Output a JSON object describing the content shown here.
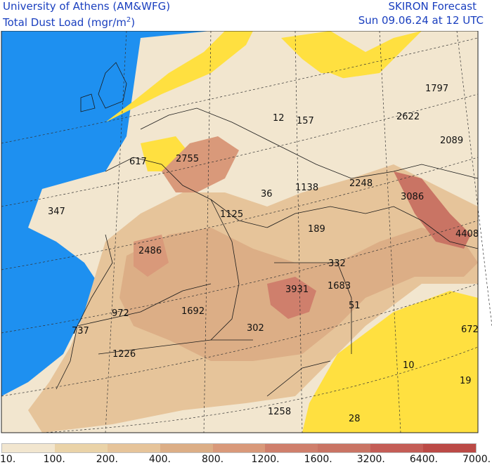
{
  "header": {
    "institution": "University of Athens (AM&WFG)",
    "variable_prefix": "Total Dust Load (mgr/m",
    "variable_sup": "2",
    "variable_suffix": ")",
    "product": "SKIRON Forecast",
    "valid_time": "Sun 09.06.24 at 12 UTC"
  },
  "colors": {
    "sea": "#1e90f0",
    "no_dust": "#ffe040",
    "land_low": "#f2e6cf",
    "border": "#1a1a1a",
    "text_blue": "#1a3fbf"
  },
  "legend": {
    "colors": [
      "#f2e6cf",
      "#ead3a8",
      "#e6c49a",
      "#dcae86",
      "#d9997a",
      "#cf7f6c",
      "#c97464",
      "#c45d56",
      "#bb4a46"
    ],
    "labels": [
      "10.",
      "100.",
      "200.",
      "400.",
      "800.",
      "1200.",
      "1600.",
      "3200.",
      "6400.",
      "7000."
    ]
  },
  "map_values": [
    {
      "id": "v1797",
      "text": "1797"
    },
    {
      "id": "v2622",
      "text": "2622"
    },
    {
      "id": "v2089",
      "text": "2089"
    },
    {
      "id": "v12",
      "text": "12"
    },
    {
      "id": "v157",
      "text": "157"
    },
    {
      "id": "v2755",
      "text": "2755"
    },
    {
      "id": "v617",
      "text": "617"
    },
    {
      "id": "v2248",
      "text": "2248"
    },
    {
      "id": "v36",
      "text": "36"
    },
    {
      "id": "v1138",
      "text": "1138"
    },
    {
      "id": "v3086",
      "text": "3086"
    },
    {
      "id": "v347",
      "text": "347"
    },
    {
      "id": "v1125",
      "text": "1125"
    },
    {
      "id": "v189",
      "text": "189"
    },
    {
      "id": "v4408",
      "text": "4408"
    },
    {
      "id": "v2486",
      "text": "2486"
    },
    {
      "id": "v332",
      "text": "332"
    },
    {
      "id": "v3931",
      "text": "3931"
    },
    {
      "id": "v1683",
      "text": "1683"
    },
    {
      "id": "v972",
      "text": "972"
    },
    {
      "id": "v1692",
      "text": "1692"
    },
    {
      "id": "v51",
      "text": "51"
    },
    {
      "id": "v737",
      "text": "737"
    },
    {
      "id": "v302",
      "text": "302"
    },
    {
      "id": "v672",
      "text": "672"
    },
    {
      "id": "v1226",
      "text": "1226"
    },
    {
      "id": "v10",
      "text": "10"
    },
    {
      "id": "v19",
      "text": "19"
    },
    {
      "id": "v1258",
      "text": "1258"
    },
    {
      "id": "v28",
      "text": "28"
    }
  ]
}
